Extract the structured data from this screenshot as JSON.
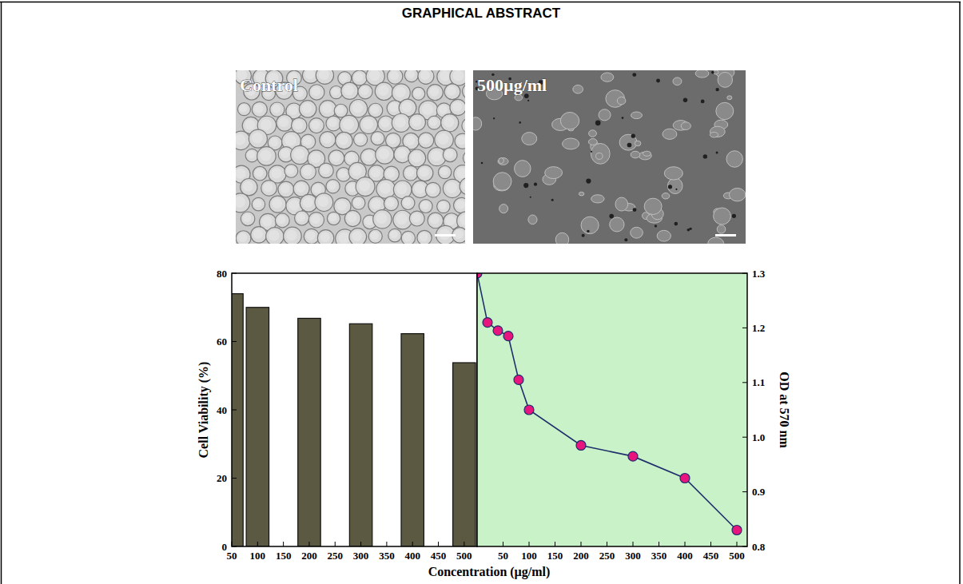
{
  "header": {
    "title": "GRAPHICAL ABSTRACT"
  },
  "images": [
    {
      "label": "Control"
    },
    {
      "label": "500µg/ml"
    }
  ],
  "chart_data": [
    {
      "type": "bar",
      "x_label": "Concentration (µg/ml)",
      "y_label": "Cell Viability (%)",
      "x": [
        50,
        100,
        200,
        300,
        400,
        500
      ],
      "values": [
        74,
        70,
        66.8,
        65.2,
        62.3,
        53.8
      ],
      "color": "#5b5942",
      "xlim": [
        50,
        525
      ],
      "xticks": [
        50,
        100,
        150,
        200,
        250,
        300,
        350,
        400,
        450,
        500
      ],
      "ylim": [
        0,
        80
      ],
      "yticks": [
        0,
        20,
        40,
        60,
        80
      ]
    },
    {
      "type": "line",
      "y2_label": "OD at 570 nm",
      "x": [
        0,
        20,
        40,
        60,
        80,
        100,
        200,
        300,
        400,
        500
      ],
      "series": [
        {
          "values": [
            1.3,
            1.21,
            1.195,
            1.185,
            1.105,
            1.05,
            0.985,
            0.965,
            0.925,
            0.83
          ],
          "color": "#1f2f6b",
          "marker": "circle",
          "axis": "y2"
        }
      ],
      "xlim": [
        0,
        520
      ],
      "xticks": [
        50,
        100,
        150,
        200,
        250,
        300,
        350,
        400,
        450,
        500
      ],
      "y2lim": [
        0.8,
        1.3
      ],
      "y2ticks": [
        0.8,
        0.9,
        {
          "value": 1,
          "label": "1.0"
        },
        1.1,
        1.2,
        1.3
      ]
    }
  ]
}
